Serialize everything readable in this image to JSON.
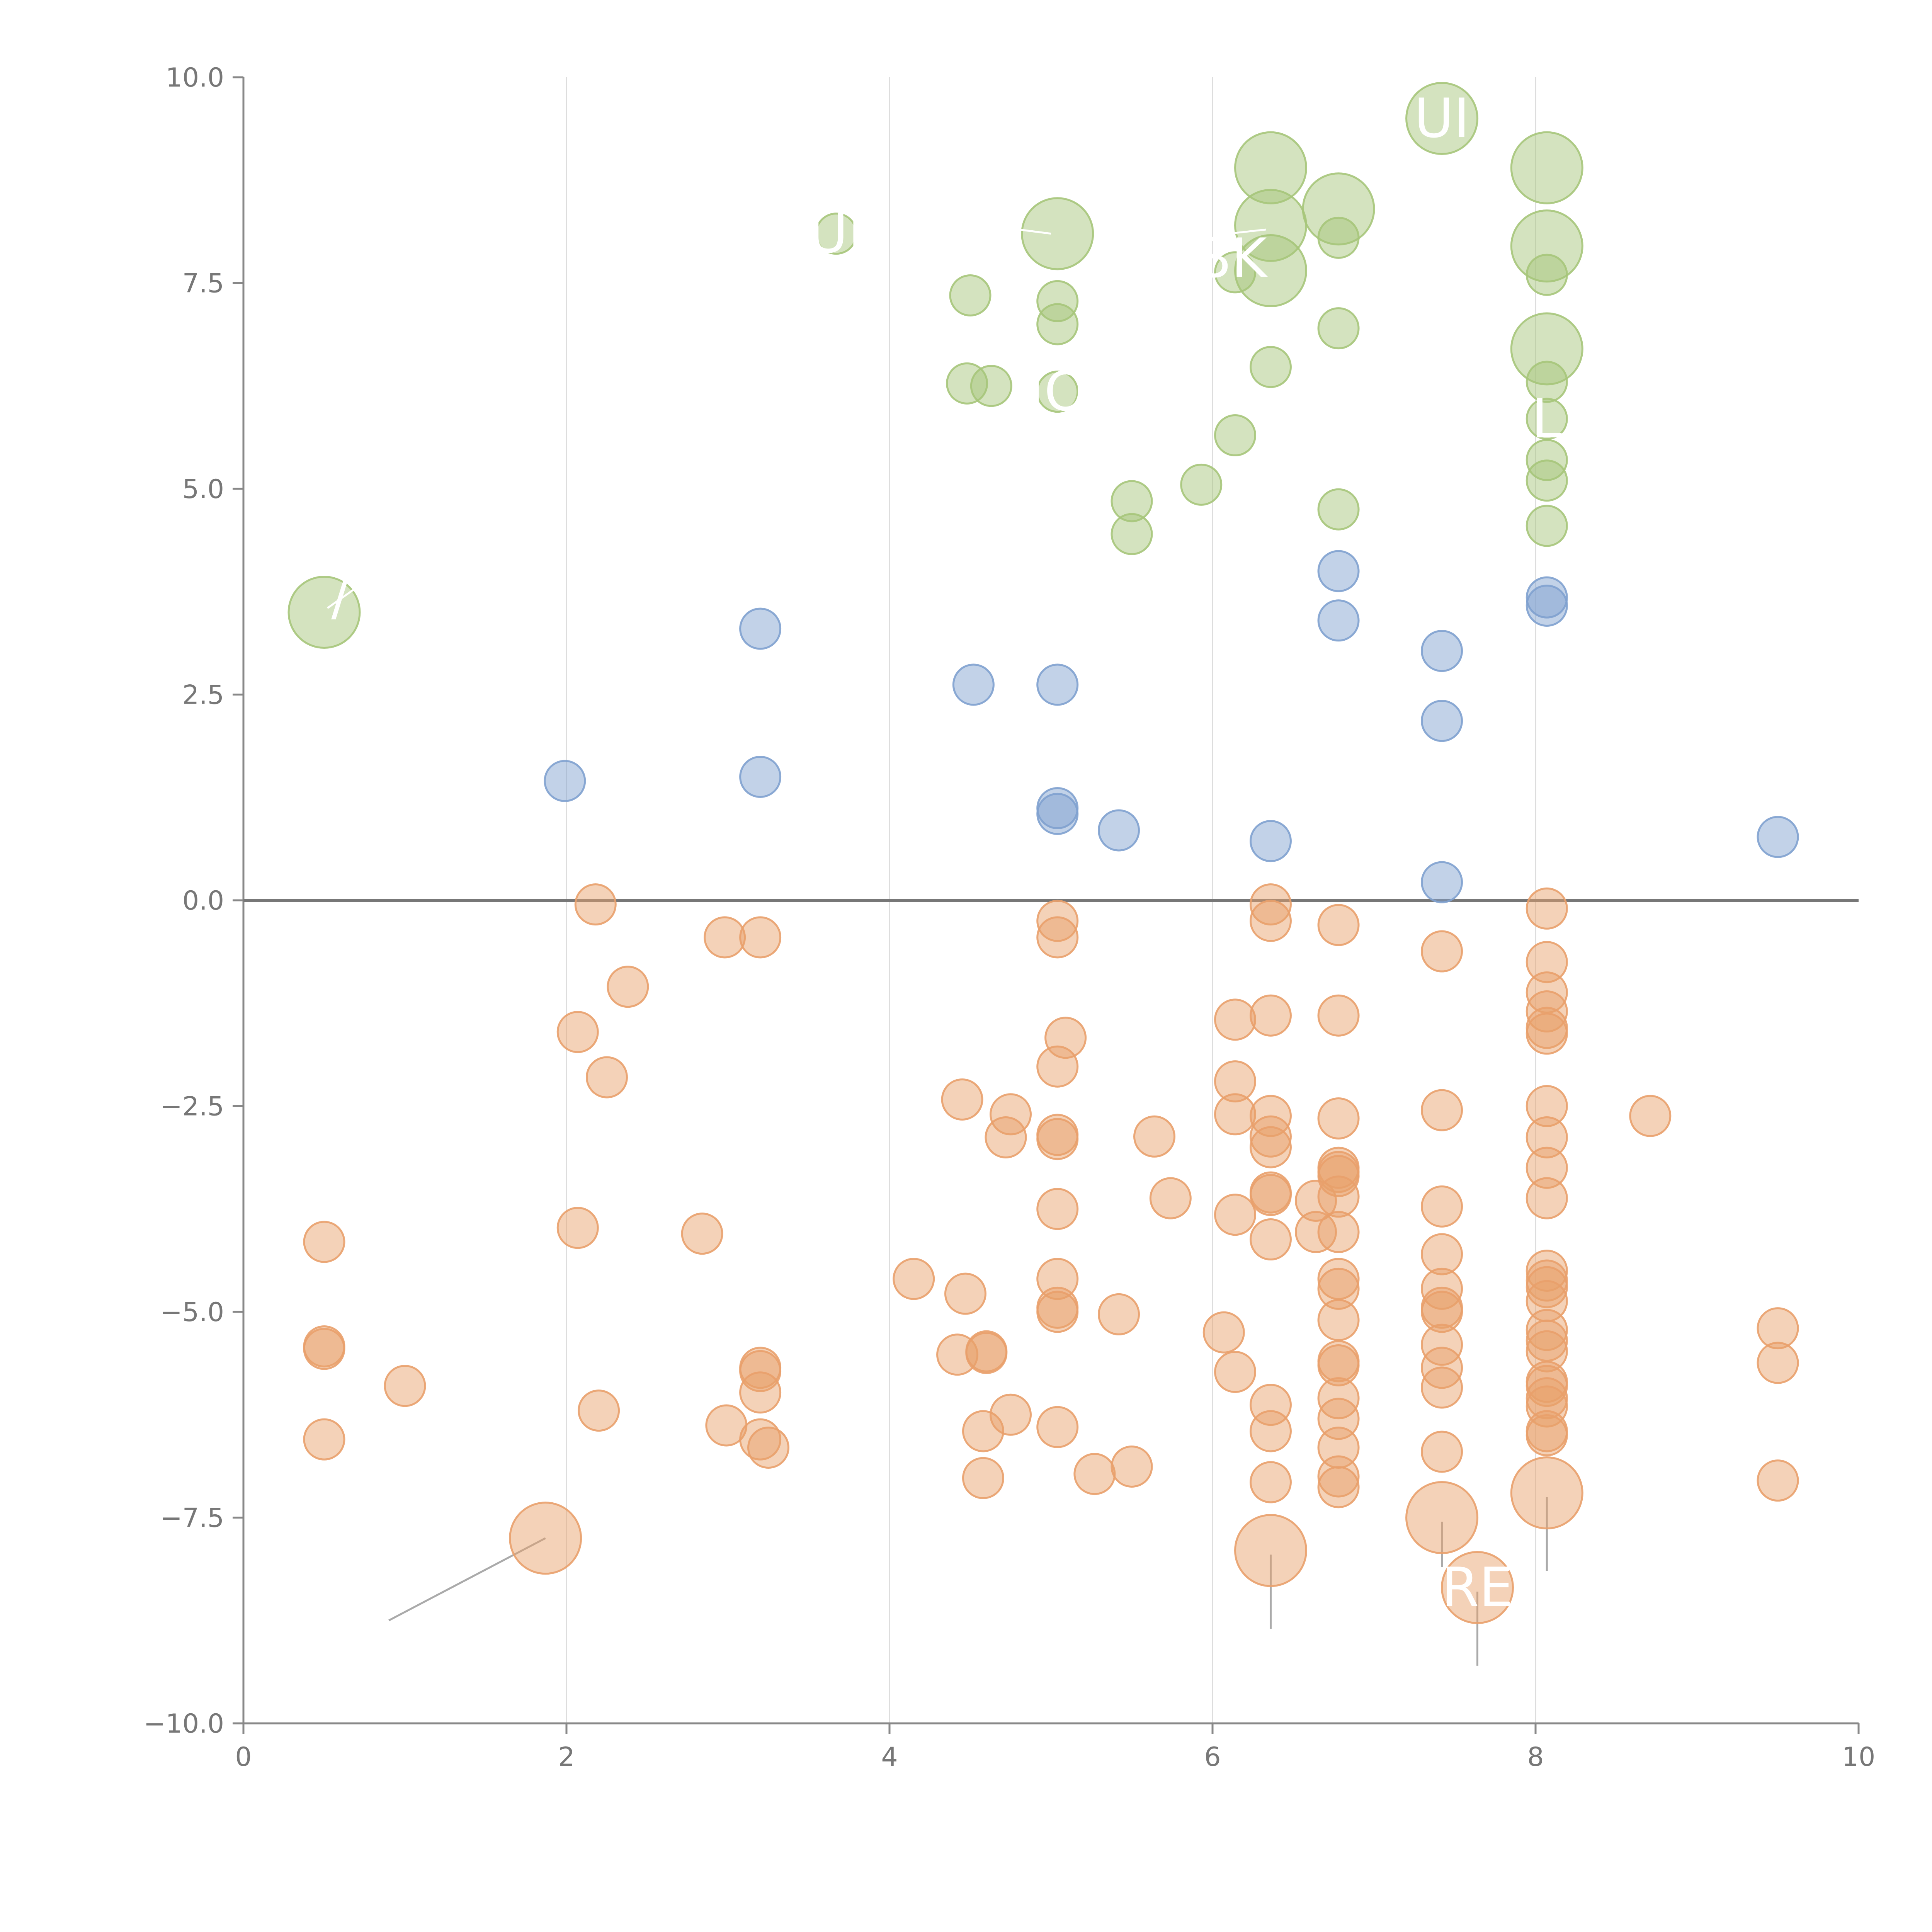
{
  "chart_data": {
    "type": "scatter",
    "title": "",
    "xlabel": "",
    "ylabel": "",
    "xlim": [
      0,
      10
    ],
    "ylim": [
      -10,
      10
    ],
    "x_ticks": [
      0,
      2,
      4,
      6,
      8,
      10
    ],
    "x_tick_labels": [
      "0",
      "2",
      "4",
      "6",
      "8",
      "10"
    ],
    "y_ticks": [
      10,
      7.5,
      5,
      2.5,
      0,
      -2.5,
      -5,
      -7.5,
      -10
    ],
    "y_tick_labels": [
      "10.0",
      "7.5",
      "5.0",
      "2.5",
      "0.0",
      "−2.5",
      "−5.0",
      "−7.5",
      "−10.0"
    ],
    "grid": "vertical lines at x = 2, 4, 6, 8",
    "zero_line": true,
    "legend": "none",
    "series": [
      {
        "color": "#a6c57a",
        "points": [
          [
            0.5,
            3.5,
            "large"
          ],
          [
            3.67,
            8.1
          ],
          [
            5.04,
            8.1,
            "large"
          ],
          [
            4.5,
            7.35
          ],
          [
            5.04,
            7.28
          ],
          [
            5.04,
            7.0
          ],
          [
            4.48,
            6.28
          ],
          [
            4.63,
            6.25
          ],
          [
            5.04,
            6.18
          ],
          [
            5.93,
            5.05
          ],
          [
            5.5,
            4.85
          ],
          [
            5.5,
            4.45
          ],
          [
            6.14,
            5.65
          ],
          [
            6.36,
            6.48
          ],
          [
            6.14,
            7.63
          ],
          [
            6.36,
            7.65,
            "large"
          ],
          [
            6.36,
            8.2,
            "large"
          ],
          [
            6.36,
            8.9,
            "large"
          ],
          [
            6.78,
            8.4,
            "large"
          ],
          [
            6.78,
            8.05
          ],
          [
            6.78,
            6.95
          ],
          [
            6.78,
            4.75
          ],
          [
            7.42,
            9.5,
            "large"
          ],
          [
            8.07,
            8.9,
            "large"
          ],
          [
            8.07,
            7.95,
            "large"
          ],
          [
            8.07,
            7.6
          ],
          [
            8.07,
            6.7,
            "large"
          ],
          [
            8.07,
            6.3
          ],
          [
            8.07,
            5.85
          ],
          [
            8.07,
            5.35
          ],
          [
            8.07,
            5.1
          ],
          [
            8.07,
            4.55
          ]
        ]
      },
      {
        "color": "#7fa1cf",
        "points": [
          [
            1.99,
            1.45
          ],
          [
            3.2,
            3.3
          ],
          [
            3.2,
            1.5
          ],
          [
            4.52,
            2.62
          ],
          [
            5.04,
            2.62
          ],
          [
            5.04,
            1.12
          ],
          [
            5.04,
            1.05
          ],
          [
            5.42,
            0.85
          ],
          [
            6.36,
            0.72
          ],
          [
            6.78,
            4.0
          ],
          [
            6.78,
            3.4
          ],
          [
            7.42,
            3.03
          ],
          [
            7.42,
            2.18
          ],
          [
            7.42,
            0.22
          ],
          [
            8.07,
            3.68
          ],
          [
            8.07,
            3.58
          ],
          [
            9.5,
            0.77
          ]
        ]
      },
      {
        "color": "#e9a06b",
        "points": [
          [
            0.5,
            -4.15
          ],
          [
            0.5,
            -5.42
          ],
          [
            0.5,
            -5.45
          ],
          [
            0.5,
            -6.55
          ],
          [
            1.0,
            -5.9
          ],
          [
            1.87,
            -7.75,
            "large"
          ],
          [
            2.18,
            -0.05
          ],
          [
            2.07,
            -1.6
          ],
          [
            2.25,
            -2.15
          ],
          [
            2.38,
            -1.05
          ],
          [
            2.07,
            -3.98
          ],
          [
            2.2,
            -6.2
          ],
          [
            2.84,
            -4.05
          ],
          [
            2.98,
            -0.45
          ],
          [
            3.2,
            -0.45
          ],
          [
            2.99,
            -6.38
          ],
          [
            3.2,
            -5.68
          ],
          [
            3.2,
            -5.72
          ],
          [
            3.2,
            -5.98
          ],
          [
            3.2,
            -6.55
          ],
          [
            3.25,
            -6.65
          ],
          [
            4.15,
            -4.6
          ],
          [
            4.45,
            -2.42
          ],
          [
            4.47,
            -4.78
          ],
          [
            4.42,
            -5.52
          ],
          [
            4.6,
            -5.48
          ],
          [
            4.6,
            -5.5
          ],
          [
            4.58,
            -6.45
          ],
          [
            4.58,
            -7.02
          ],
          [
            4.75,
            -2.6
          ],
          [
            4.72,
            -2.88
          ],
          [
            4.75,
            -6.25
          ],
          [
            5.04,
            -0.25
          ],
          [
            5.04,
            -0.45
          ],
          [
            5.09,
            -1.67
          ],
          [
            5.04,
            -2.02
          ],
          [
            5.04,
            -2.85
          ],
          [
            5.04,
            -2.9
          ],
          [
            5.04,
            -3.75
          ],
          [
            5.04,
            -4.6
          ],
          [
            5.04,
            -4.95
          ],
          [
            5.04,
            -5.0
          ],
          [
            5.04,
            -6.4
          ],
          [
            5.27,
            -6.97
          ],
          [
            5.42,
            -5.03
          ],
          [
            5.5,
            -6.88
          ],
          [
            5.64,
            -2.87
          ],
          [
            5.74,
            -3.62
          ],
          [
            6.07,
            -5.25
          ],
          [
            6.14,
            -1.45
          ],
          [
            6.14,
            -2.2
          ],
          [
            6.14,
            -2.6
          ],
          [
            6.14,
            -3.82
          ],
          [
            6.14,
            -5.73
          ],
          [
            6.36,
            -0.05
          ],
          [
            6.36,
            -0.25
          ],
          [
            6.36,
            -1.4
          ],
          [
            6.36,
            -2.62
          ],
          [
            6.36,
            -2.87
          ],
          [
            6.36,
            -3.0
          ],
          [
            6.36,
            -3.55
          ],
          [
            6.36,
            -3.58
          ],
          [
            6.36,
            -4.12
          ],
          [
            6.36,
            -6.13
          ],
          [
            6.36,
            -6.45
          ],
          [
            6.36,
            -7.07
          ],
          [
            6.36,
            -7.9,
            "large"
          ],
          [
            6.64,
            -3.65
          ],
          [
            6.64,
            -4.03
          ],
          [
            6.78,
            -0.3
          ],
          [
            6.78,
            -1.4
          ],
          [
            6.78,
            -2.65
          ],
          [
            6.78,
            -3.25
          ],
          [
            6.78,
            -3.3
          ],
          [
            6.78,
            -3.35
          ],
          [
            6.78,
            -3.6
          ],
          [
            6.78,
            -4.03
          ],
          [
            6.78,
            -4.6
          ],
          [
            6.78,
            -4.72
          ],
          [
            6.78,
            -5.1
          ],
          [
            6.78,
            -5.6
          ],
          [
            6.78,
            -5.65
          ],
          [
            6.78,
            -6.05
          ],
          [
            6.78,
            -6.3
          ],
          [
            6.78,
            -6.65
          ],
          [
            6.78,
            -7.0
          ],
          [
            6.78,
            -7.13
          ],
          [
            7.42,
            -0.62
          ],
          [
            7.42,
            -2.55
          ],
          [
            7.42,
            -3.72
          ],
          [
            7.42,
            -4.3
          ],
          [
            7.42,
            -4.72
          ],
          [
            7.42,
            -4.95
          ],
          [
            7.42,
            -5.0
          ],
          [
            7.42,
            -5.4
          ],
          [
            7.42,
            -5.68
          ],
          [
            7.42,
            -5.92
          ],
          [
            7.42,
            -6.7
          ],
          [
            7.42,
            -7.5,
            "large"
          ],
          [
            7.64,
            -8.35,
            "large"
          ],
          [
            8.07,
            -0.1
          ],
          [
            8.07,
            -0.75
          ],
          [
            8.07,
            -1.12
          ],
          [
            8.07,
            -1.35
          ],
          [
            8.07,
            -1.55
          ],
          [
            8.07,
            -1.62
          ],
          [
            8.07,
            -2.5
          ],
          [
            8.07,
            -2.88
          ],
          [
            8.07,
            -3.25
          ],
          [
            8.07,
            -3.62
          ],
          [
            8.07,
            -4.5
          ],
          [
            8.07,
            -4.62
          ],
          [
            8.07,
            -4.7
          ],
          [
            8.07,
            -4.87
          ],
          [
            8.07,
            -5.22
          ],
          [
            8.07,
            -5.35
          ],
          [
            8.07,
            -5.48
          ],
          [
            8.07,
            -5.85
          ],
          [
            8.07,
            -5.9
          ],
          [
            8.07,
            -6.05
          ],
          [
            8.07,
            -6.15
          ],
          [
            8.07,
            -6.45
          ],
          [
            8.07,
            -6.5
          ],
          [
            8.07,
            -7.2,
            "large"
          ],
          [
            8.71,
            -2.62
          ],
          [
            9.5,
            -5.2
          ],
          [
            9.5,
            -5.62
          ],
          [
            9.5,
            -7.05
          ]
        ]
      }
    ],
    "annotations": [
      {
        "text": "UI",
        "x": 7.42,
        "y": 9.5,
        "lx1": 7.42,
        "ly1": 9.5,
        "lx2": 7.42,
        "ly2": 9.5
      },
      {
        "text": "UI",
        "x": 3.67,
        "y": 8.1,
        "lx1": 4.6,
        "ly1": 8.2,
        "lx2": 5.0,
        "ly2": 8.1
      },
      {
        "text": "8K",
        "x": 6.12,
        "y": 7.8,
        "lx1": 6.1,
        "ly1": 8.1,
        "lx2": 6.33,
        "ly2": 8.15
      },
      {
        "text": "IO",
        "x": 5.04,
        "y": 6.18,
        "lx1": 5.04,
        "ly1": 6.18,
        "lx2": 5.04,
        "ly2": 6.18
      },
      {
        "text": "L",
        "x": 8.07,
        "y": 5.85,
        "lx1": 8.07,
        "ly1": 5.9,
        "lx2": 8.07,
        "ly2": 5.9
      },
      {
        "text": "/",
        "x": 0.6,
        "y": 3.7,
        "lx1": 0.52,
        "ly1": 3.55,
        "lx2": 0.7,
        "ly2": 3.8
      },
      {
        "text": "RE",
        "x": 7.64,
        "y": -8.35,
        "lx1": 7.64,
        "ly1": -8.35,
        "lx2": 7.64,
        "ly2": -8.35
      }
    ]
  }
}
